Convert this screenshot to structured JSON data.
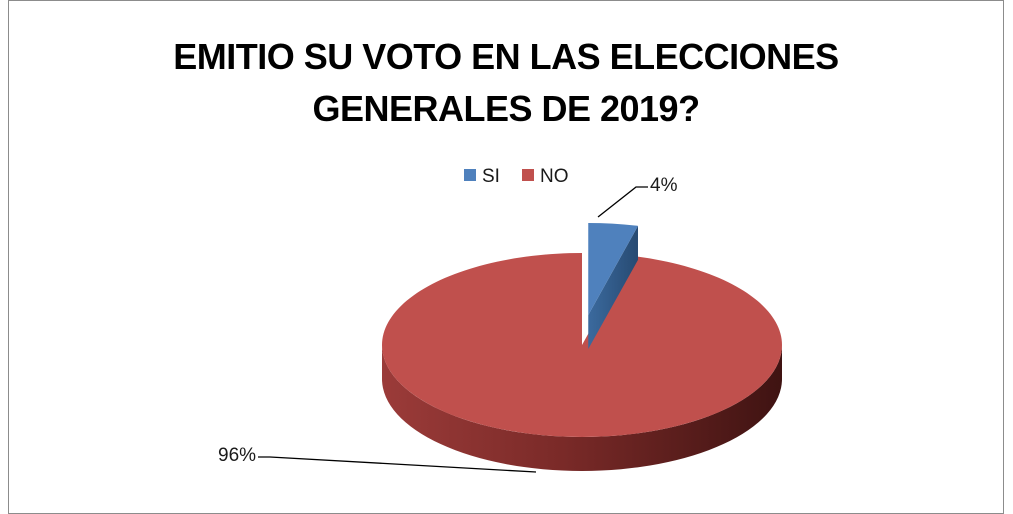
{
  "chart_data": {
    "type": "pie",
    "title_lines": [
      "EMITIO SU VOTO EN LAS ELECCIONES",
      "GENERALES DE 2019?"
    ],
    "legend_position": "top",
    "series": [
      {
        "name": "SI",
        "value": 4,
        "label": "4%",
        "color": "#4f81bd"
      },
      {
        "name": "NO",
        "value": 96,
        "label": "96%",
        "color": "#c0504d"
      }
    ]
  }
}
